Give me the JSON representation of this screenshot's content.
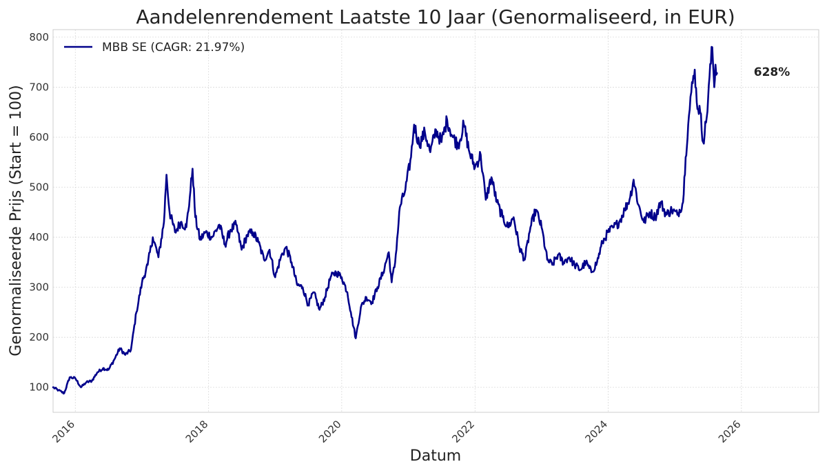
{
  "chart_data": {
    "type": "line",
    "title": "Aandelenrendement Laatste 10 Jaar (Genormaliseerd, in EUR)",
    "xlabel": "Datum",
    "ylabel": "Genormaliseerde Prijs (Start = 100)",
    "xlim": [
      "2015-09-01",
      "2027-03-01"
    ],
    "ylim": [
      50,
      815
    ],
    "x_ticks": [
      "2016",
      "2018",
      "2020",
      "2022",
      "2024",
      "2026"
    ],
    "y_ticks": [
      100,
      200,
      300,
      400,
      500,
      600,
      700,
      800
    ],
    "grid": true,
    "legend_position": "top-left",
    "end_label": "628%",
    "series": [
      {
        "name": "MBB SE (CAGR: 21.97%)",
        "color": "#00008b",
        "points": [
          [
            "2015-09-01",
            100
          ],
          [
            "2015-10-01",
            94
          ],
          [
            "2015-11-01",
            88
          ],
          [
            "2015-12-01",
            120
          ],
          [
            "2016-01-01",
            118
          ],
          [
            "2016-02-01",
            100
          ],
          [
            "2016-03-01",
            110
          ],
          [
            "2016-04-01",
            113
          ],
          [
            "2016-05-01",
            130
          ],
          [
            "2016-06-01",
            138
          ],
          [
            "2016-07-01",
            135
          ],
          [
            "2016-08-01",
            155
          ],
          [
            "2016-09-01",
            178
          ],
          [
            "2016-10-01",
            165
          ],
          [
            "2016-11-01",
            175
          ],
          [
            "2016-12-01",
            250
          ],
          [
            "2017-01-01",
            310
          ],
          [
            "2017-02-01",
            345
          ],
          [
            "2017-03-01",
            400
          ],
          [
            "2017-04-01",
            360
          ],
          [
            "2017-05-01",
            430
          ],
          [
            "2017-05-15",
            525
          ],
          [
            "2017-06-01",
            450
          ],
          [
            "2017-07-01",
            410
          ],
          [
            "2017-08-01",
            430
          ],
          [
            "2017-09-01",
            420
          ],
          [
            "2017-09-20",
            480
          ],
          [
            "2017-10-05",
            537
          ],
          [
            "2017-10-20",
            440
          ],
          [
            "2017-11-15",
            395
          ],
          [
            "2017-12-15",
            410
          ],
          [
            "2018-01-20",
            400
          ],
          [
            "2018-03-01",
            425
          ],
          [
            "2018-04-01",
            385
          ],
          [
            "2018-05-01",
            415
          ],
          [
            "2018-06-01",
            425
          ],
          [
            "2018-07-01",
            375
          ],
          [
            "2018-08-01",
            405
          ],
          [
            "2018-09-01",
            410
          ],
          [
            "2018-10-01",
            390
          ],
          [
            "2018-11-01",
            355
          ],
          [
            "2018-12-01",
            375
          ],
          [
            "2019-01-01",
            320
          ],
          [
            "2019-02-01",
            360
          ],
          [
            "2019-03-01",
            380
          ],
          [
            "2019-04-01",
            350
          ],
          [
            "2019-05-01",
            305
          ],
          [
            "2019-06-01",
            300
          ],
          [
            "2019-07-01",
            265
          ],
          [
            "2019-08-01",
            290
          ],
          [
            "2019-09-01",
            255
          ],
          [
            "2019-10-01",
            280
          ],
          [
            "2019-11-01",
            320
          ],
          [
            "2019-12-01",
            330
          ],
          [
            "2020-01-01",
            320
          ],
          [
            "2020-02-01",
            290
          ],
          [
            "2020-02-20",
            250
          ],
          [
            "2020-03-18",
            198
          ],
          [
            "2020-04-15",
            260
          ],
          [
            "2020-05-15",
            280
          ],
          [
            "2020-06-15",
            270
          ],
          [
            "2020-07-15",
            300
          ],
          [
            "2020-08-15",
            330
          ],
          [
            "2020-09-15",
            370
          ],
          [
            "2020-10-01",
            310
          ],
          [
            "2020-10-20",
            350
          ],
          [
            "2020-11-15",
            460
          ],
          [
            "2020-12-15",
            495
          ],
          [
            "2021-01-15",
            560
          ],
          [
            "2021-02-01",
            625
          ],
          [
            "2021-03-01",
            585
          ],
          [
            "2021-04-01",
            610
          ],
          [
            "2021-05-01",
            570
          ],
          [
            "2021-06-01",
            615
          ],
          [
            "2021-07-01",
            590
          ],
          [
            "2021-08-01",
            635
          ],
          [
            "2021-09-01",
            600
          ],
          [
            "2021-10-01",
            585
          ],
          [
            "2021-11-01",
            625
          ],
          [
            "2021-12-01",
            570
          ],
          [
            "2022-01-01",
            540
          ],
          [
            "2022-02-01",
            565
          ],
          [
            "2022-03-01",
            475
          ],
          [
            "2022-04-01",
            520
          ],
          [
            "2022-05-01",
            470
          ],
          [
            "2022-06-01",
            440
          ],
          [
            "2022-07-01",
            420
          ],
          [
            "2022-08-01",
            440
          ],
          [
            "2022-09-01",
            380
          ],
          [
            "2022-10-01",
            355
          ],
          [
            "2022-11-01",
            420
          ],
          [
            "2022-12-01",
            455
          ],
          [
            "2023-01-01",
            420
          ],
          [
            "2023-02-01",
            355
          ],
          [
            "2023-03-01",
            345
          ],
          [
            "2023-04-01",
            365
          ],
          [
            "2023-05-01",
            350
          ],
          [
            "2023-06-01",
            360
          ],
          [
            "2023-07-01",
            345
          ],
          [
            "2023-08-01",
            335
          ],
          [
            "2023-09-01",
            350
          ],
          [
            "2023-10-01",
            330
          ],
          [
            "2023-11-01",
            350
          ],
          [
            "2023-12-01",
            390
          ],
          [
            "2024-01-01",
            410
          ],
          [
            "2024-02-01",
            420
          ],
          [
            "2024-03-01",
            430
          ],
          [
            "2024-04-01",
            455
          ],
          [
            "2024-05-01",
            480
          ],
          [
            "2024-05-20",
            515
          ],
          [
            "2024-06-15",
            465
          ],
          [
            "2024-07-15",
            430
          ],
          [
            "2024-08-15",
            450
          ],
          [
            "2024-09-15",
            440
          ],
          [
            "2024-10-15",
            470
          ],
          [
            "2024-11-15",
            445
          ],
          [
            "2024-12-15",
            455
          ],
          [
            "2025-01-15",
            445
          ],
          [
            "2025-02-15",
            470
          ],
          [
            "2025-03-01",
            560
          ],
          [
            "2025-03-15",
            625
          ],
          [
            "2025-04-01",
            690
          ],
          [
            "2025-04-20",
            735
          ],
          [
            "2025-05-01",
            670
          ],
          [
            "2025-05-20",
            650
          ],
          [
            "2025-06-05",
            590
          ],
          [
            "2025-06-25",
            640
          ],
          [
            "2025-07-10",
            720
          ],
          [
            "2025-07-25",
            780
          ],
          [
            "2025-08-05",
            700
          ],
          [
            "2025-08-12",
            745
          ],
          [
            "2025-08-20",
            728
          ]
        ]
      }
    ]
  }
}
